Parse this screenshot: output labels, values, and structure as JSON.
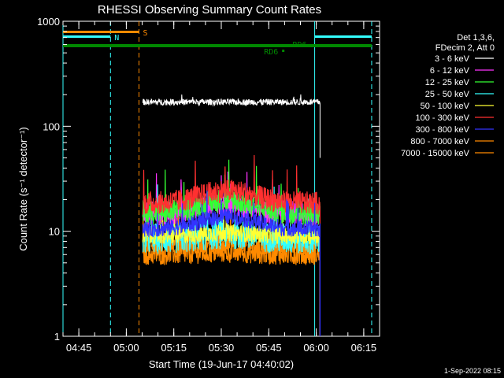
{
  "chart_data": {
    "type": "line",
    "title": "RHESSI Observing Summary Count Rates",
    "xlabel": "Start Time (19-Jun-17 04:40:02)",
    "ylabel": "Count Rate (s⁻¹ detector⁻¹)",
    "y_scale": "log",
    "ylim": [
      1,
      1000
    ],
    "y_ticks": [
      {
        "value": 1,
        "label": "1"
      },
      {
        "value": 10,
        "label": "10"
      },
      {
        "value": 100,
        "label": "100"
      },
      {
        "value": 1000,
        "label": "1000"
      }
    ],
    "x_range_minutes": [
      0,
      100
    ],
    "x_ticks": [
      {
        "minute": 5,
        "label": "04:45"
      },
      {
        "minute": 20,
        "label": "05:00"
      },
      {
        "minute": 35,
        "label": "05:15"
      },
      {
        "minute": 50,
        "label": "05:30"
      },
      {
        "minute": 65,
        "label": "05:45"
      },
      {
        "minute": 80,
        "label": "06:00"
      },
      {
        "minute": 95,
        "label": "06:15"
      }
    ],
    "data_start_minute": 25.2,
    "data_end_minute": 81.2,
    "legend": {
      "header": [
        "Det 1,3,6,",
        "FDecim 2, Att 0"
      ],
      "placement": "right"
    },
    "series": [
      {
        "name": "3 - 6 keV",
        "color": "#ffffff",
        "base": 170,
        "noise": 0.03,
        "bump": 0.0,
        "drop_to": 50
      },
      {
        "name": "6 - 12 keV",
        "color": "#ff33ff",
        "base": 14.5,
        "noise": 0.12,
        "bump": 0.1,
        "drop_to": 1
      },
      {
        "name": "12 - 25 keV",
        "color": "#33ff33",
        "base": 15,
        "noise": 0.12,
        "bump": 0.12,
        "drop_to": 1
      },
      {
        "name": "25 - 50 keV",
        "color": "#33ffff",
        "base": 8.5,
        "noise": 0.15,
        "bump": 0.05,
        "drop_to": 1
      },
      {
        "name": "50 - 100 keV",
        "color": "#ffff33",
        "base": 9.0,
        "noise": 0.08,
        "bump": 0.03,
        "drop_to": 1
      },
      {
        "name": "100 - 300 keV",
        "color": "#ff3030",
        "base": 18.5,
        "noise": 0.11,
        "bump": 0.12,
        "drop_to": 1
      },
      {
        "name": "300 - 800 keV",
        "color": "#3333ff",
        "base": 10.5,
        "noise": 0.08,
        "bump": 0.12,
        "drop_to": 1
      },
      {
        "name": "800 - 7000 keV",
        "color": "#ff8a00",
        "base": 7.5,
        "noise": 0.1,
        "bump": 0.02,
        "drop_to": 1
      },
      {
        "name": "7000 - 15000 keV",
        "color": "#ff8a00",
        "base": 6.0,
        "noise": 0.1,
        "bump": 0.02,
        "drop_to": 1
      }
    ],
    "vertical_lines": [
      {
        "minute": 0,
        "color": "#33ffff",
        "style": "solid"
      },
      {
        "minute": 15,
        "color": "#33ffff",
        "style": "dashed"
      },
      {
        "minute": 24,
        "color": "#ff8a00",
        "style": "dashed"
      },
      {
        "minute": 79.5,
        "color": "#33ffff",
        "style": "solid"
      },
      {
        "minute": 97.5,
        "color": "#33ffff",
        "style": "dashed"
      }
    ],
    "status_bars": [
      {
        "label": "S",
        "color": "#ff8a00",
        "start": 0,
        "end": 24
      },
      {
        "label": "N",
        "color": "#33ffff",
        "start": 0,
        "end": 15
      },
      {
        "label": "",
        "color": "#33ffff",
        "start": 79.5,
        "end": 97.5
      },
      {
        "label": "RD6",
        "color": "#008800",
        "start": 0,
        "end": 97.5
      },
      {
        "label": "RD6",
        "color": "#008800",
        "start": 69.2,
        "end": 69.8
      }
    ],
    "footer": "1-Sep-2022 08:15"
  }
}
